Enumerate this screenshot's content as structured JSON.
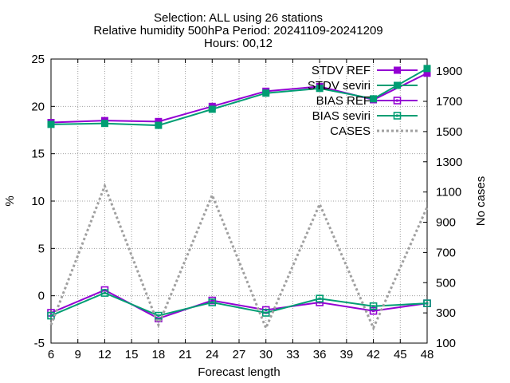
{
  "chart_data": {
    "type": "line",
    "title_lines": [
      "Selection: ALL using    26 stations",
      "Relative humidity 500hPa   Period: 20241109-20241209",
      "Hours: 00,12"
    ],
    "xlabel": "Forecast length",
    "ylabel": "%",
    "y2label": "No cases",
    "x_ticks": [
      "6",
      "9",
      "12",
      "15",
      "18",
      "21",
      "24",
      "27",
      "30",
      "33",
      "36",
      "39",
      "42",
      "45",
      "48"
    ],
    "y_ticks": [
      "-5",
      "0",
      "5",
      "10",
      "15",
      "20",
      "25"
    ],
    "y2_ticks": [
      "100",
      "300",
      "500",
      "700",
      "900",
      "1100",
      "1300",
      "1500",
      "1700",
      "1900"
    ],
    "xlim": [
      6,
      48
    ],
    "ylim": [
      -5,
      25
    ],
    "y2lim": [
      100,
      1980
    ],
    "grid": true,
    "legend_position": "top-right",
    "x": [
      6,
      12,
      18,
      24,
      30,
      36,
      42,
      48
    ],
    "series": [
      {
        "name": "STDV REF",
        "axis": "y",
        "color": "#9400d3",
        "marker": "square-filled",
        "dash": "solid",
        "values": [
          18.3,
          18.5,
          18.4,
          20.0,
          21.6,
          22.1,
          20.7,
          23.5
        ]
      },
      {
        "name": "STDV seviri",
        "axis": "y",
        "color": "#009e73",
        "marker": "square-filled",
        "dash": "solid",
        "values": [
          18.1,
          18.2,
          18.0,
          19.7,
          21.4,
          21.9,
          20.8,
          24.0
        ]
      },
      {
        "name": "BIAS REF",
        "axis": "y",
        "color": "#9400d3",
        "marker": "square-open",
        "dash": "solid",
        "values": [
          -1.8,
          0.6,
          -2.4,
          -0.5,
          -1.5,
          -0.7,
          -1.6,
          -0.8
        ]
      },
      {
        "name": "BIAS seviri",
        "axis": "y",
        "color": "#009e73",
        "marker": "square-open",
        "dash": "solid",
        "values": [
          -2.1,
          0.3,
          -2.1,
          -0.7,
          -1.8,
          -0.3,
          -1.1,
          -0.8
        ]
      },
      {
        "name": "CASES",
        "axis": "y2",
        "color": "#a0a0a0",
        "marker": "none",
        "dash": "dotted",
        "values": [
          220,
          1140,
          220,
          1080,
          200,
          1020,
          200,
          1000
        ]
      }
    ]
  }
}
